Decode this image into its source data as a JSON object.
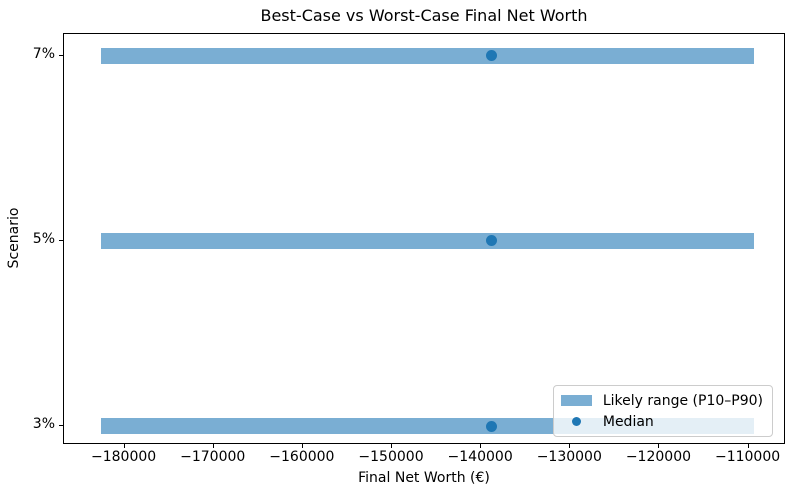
{
  "figure": {
    "title": "Best-Case vs Worst-Case Final Net Worth",
    "xlabel": "Final Net Worth (€)",
    "ylabel": "Scenario"
  },
  "legend": {
    "items": [
      {
        "label": "Likely range (P10–P90)",
        "swatch": "bar"
      },
      {
        "label": "Median",
        "swatch": "dot"
      }
    ],
    "position": "lower right"
  },
  "colors": {
    "bar_fill": "#7aaed3",
    "median_dot": "#1f77b4",
    "spine": "#000000",
    "legend_border": "#cccccc"
  },
  "chart_data": {
    "type": "bar",
    "subtype": "horizontal_range_bars_with_median_dots",
    "title": "Best-Case vs Worst-Case Final Net Worth",
    "xlabel": "Final Net Worth (€)",
    "ylabel": "Scenario",
    "categories": [
      "7%",
      "5%",
      "3%"
    ],
    "series": [
      {
        "name": "Likely range (P10–P90)",
        "type": "range_bar",
        "p10": [
          -182700,
          -182700,
          -182700
        ],
        "p90": [
          -109400,
          -109400,
          -109400
        ]
      },
      {
        "name": "Median",
        "type": "scatter",
        "values": [
          -138800,
          -138800,
          -138800
        ]
      }
    ],
    "xlim": [
      -186800,
      -105800
    ],
    "x_tick_values": [
      -180000,
      -170000,
      -160000,
      -150000,
      -140000,
      -130000,
      -120000,
      -110000
    ],
    "x_tick_labels": [
      "−180000",
      "−170000",
      "−160000",
      "−150000",
      "−140000",
      "−130000",
      "−120000",
      "−110000"
    ],
    "grid": false,
    "legend_position": "lower right"
  }
}
